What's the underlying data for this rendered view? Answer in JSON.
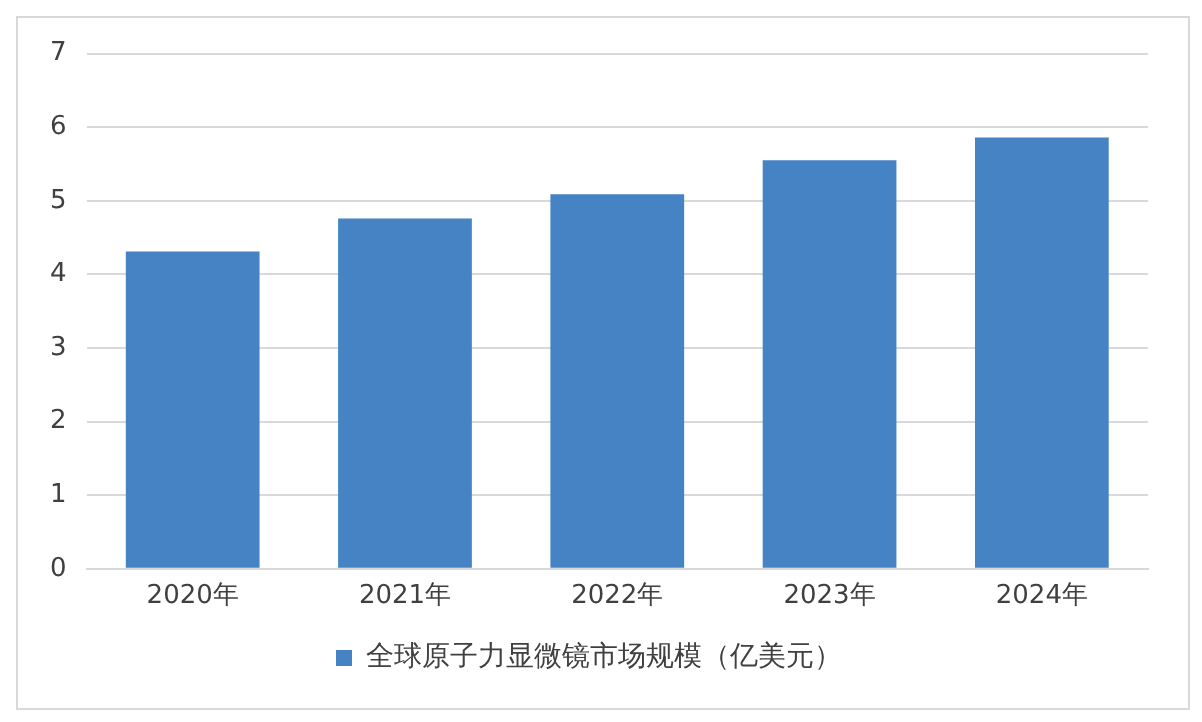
{
  "chart_data": {
    "type": "bar",
    "categories": [
      "2020年",
      "2021年",
      "2022年",
      "2023年",
      "2024年"
    ],
    "series": [
      {
        "name": "全球原子力显微镜市场规模（亿美元）",
        "color": "#4583c4",
        "values": [
          4.31,
          4.76,
          5.09,
          5.55,
          5.86
        ]
      }
    ],
    "ylim": [
      0,
      7
    ],
    "yticks": [
      0,
      1,
      2,
      3,
      4,
      5,
      6,
      7
    ],
    "grid": "y",
    "legend": "bottom"
  }
}
